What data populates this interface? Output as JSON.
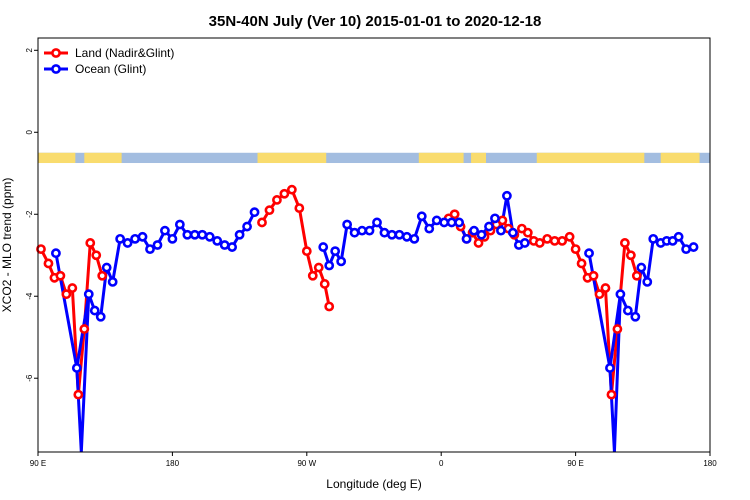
{
  "chart_data": {
    "type": "line",
    "title": "35N-40N July (Ver 10)   2015-01-01 to 2020-12-18",
    "xlabel": "Longitude (deg E)",
    "ylabel": "XCO2 - MLO trend (ppm)",
    "xlim": [
      90,
      540
    ],
    "ylim": [
      -7.8,
      2.3
    ],
    "x_ticks": [
      {
        "value": 90,
        "label": "90 E"
      },
      {
        "value": 180,
        "label": "180"
      },
      {
        "value": 270,
        "label": "90 W"
      },
      {
        "value": 360,
        "label": "0"
      },
      {
        "value": 450,
        "label": "90 E"
      },
      {
        "value": 540,
        "label": "180"
      }
    ],
    "y_ticks": [
      2,
      0,
      -2,
      -4,
      -6
    ],
    "grid": false,
    "legend_position": "top-left",
    "land_mask_band": {
      "y_range": [
        -0.75,
        -0.5
      ],
      "ocean_color": "#a3bde0",
      "land_color": "#f9dc6e",
      "land_segments": [
        [
          90,
          115
        ],
        [
          121,
          146
        ],
        [
          237,
          283
        ],
        [
          345,
          375
        ],
        [
          380,
          390
        ],
        [
          424,
          496
        ],
        [
          507,
          533
        ]
      ]
    },
    "series": [
      {
        "name": "Land (Nadir&Glint)",
        "color": "#ff0000",
        "segments": [
          [
            [
              92,
              -2.85
            ],
            [
              97,
              -3.2
            ],
            [
              101,
              -3.55
            ],
            [
              105,
              -3.5
            ],
            [
              109,
              -3.95
            ],
            [
              113,
              -3.8
            ],
            [
              117,
              -6.4
            ],
            [
              121,
              -4.8
            ],
            [
              125,
              -2.7
            ],
            [
              129,
              -3.0
            ],
            [
              133,
              -3.5
            ]
          ],
          [
            [
              240,
              -2.2
            ],
            [
              245,
              -1.9
            ],
            [
              250,
              -1.65
            ],
            [
              255,
              -1.5
            ],
            [
              260,
              -1.4
            ],
            [
              265,
              -1.85
            ],
            [
              270,
              -2.9
            ],
            [
              274,
              -3.5
            ],
            [
              278,
              -3.3
            ],
            [
              282,
              -3.7
            ],
            [
              285,
              -4.25
            ]
          ],
          [
            [
              365,
              -2.1
            ],
            [
              369,
              -2.0
            ],
            [
              373,
              -2.3
            ],
            [
              377,
              -2.6
            ],
            [
              381,
              -2.45
            ],
            [
              385,
              -2.7
            ],
            [
              389,
              -2.55
            ],
            [
              393,
              -2.4
            ],
            [
              397,
              -2.25
            ],
            [
              401,
              -2.15
            ],
            [
              405,
              -2.35
            ],
            [
              409,
              -2.5
            ]
          ],
          [
            [
              414,
              -2.35
            ],
            [
              418,
              -2.45
            ],
            [
              422,
              -2.65
            ],
            [
              426,
              -2.7
            ],
            [
              431,
              -2.6
            ],
            [
              436,
              -2.65
            ],
            [
              441,
              -2.65
            ],
            [
              446,
              -2.55
            ],
            [
              450,
              -2.85
            ],
            [
              454,
              -3.2
            ],
            [
              458,
              -3.55
            ],
            [
              462,
              -3.5
            ],
            [
              466,
              -3.95
            ],
            [
              470,
              -3.8
            ],
            [
              474,
              -6.4
            ],
            [
              478,
              -4.8
            ],
            [
              483,
              -2.7
            ],
            [
              487,
              -3.0
            ],
            [
              491,
              -3.5
            ]
          ]
        ]
      },
      {
        "name": "Ocean (Glint)",
        "color": "#0000ff",
        "segments": [
          [
            [
              102,
              -2.95
            ],
            [
              116,
              -5.75
            ],
            [
              124,
              -3.95
            ],
            [
              128,
              -4.35
            ],
            [
              132,
              -4.5
            ],
            [
              136,
              -3.3
            ],
            [
              140,
              -3.65
            ],
            [
              145,
              -2.6
            ],
            [
              150,
              -2.7
            ],
            [
              155,
              -2.6
            ],
            [
              160,
              -2.55
            ],
            [
              165,
              -2.85
            ],
            [
              170,
              -2.75
            ],
            [
              175,
              -2.4
            ],
            [
              180,
              -2.6
            ],
            [
              185,
              -2.25
            ],
            [
              190,
              -2.5
            ],
            [
              195,
              -2.5
            ],
            [
              200,
              -2.5
            ],
            [
              205,
              -2.55
            ],
            [
              210,
              -2.65
            ],
            [
              215,
              -2.75
            ],
            [
              220,
              -2.8
            ],
            [
              225,
              -2.5
            ],
            [
              230,
              -2.3
            ],
            [
              235,
              -1.95
            ]
          ],
          [
            [
              281,
              -2.8
            ],
            [
              285,
              -3.25
            ],
            [
              289,
              -2.9
            ],
            [
              293,
              -3.15
            ],
            [
              297,
              -2.25
            ],
            [
              302,
              -2.45
            ],
            [
              307,
              -2.4
            ],
            [
              312,
              -2.4
            ],
            [
              317,
              -2.2
            ],
            [
              322,
              -2.45
            ],
            [
              327,
              -2.5
            ],
            [
              332,
              -2.5
            ],
            [
              337,
              -2.55
            ],
            [
              342,
              -2.6
            ],
            [
              347,
              -2.05
            ],
            [
              352,
              -2.35
            ],
            [
              357,
              -2.15
            ],
            [
              362,
              -2.2
            ],
            [
              367,
              -2.2
            ],
            [
              372,
              -2.2
            ],
            [
              377,
              -2.6
            ],
            [
              382,
              -2.4
            ],
            [
              387,
              -2.5
            ],
            [
              392,
              -2.3
            ],
            [
              396,
              -2.1
            ],
            [
              400,
              -2.4
            ],
            [
              404,
              -1.55
            ],
            [
              408,
              -2.45
            ],
            [
              412,
              -2.75
            ],
            [
              416,
              -2.7
            ]
          ],
          [
            [
              459,
              -2.95
            ],
            [
              473,
              -5.75
            ],
            [
              480,
              -3.95
            ],
            [
              485,
              -4.35
            ],
            [
              490,
              -4.5
            ],
            [
              494,
              -3.3
            ],
            [
              498,
              -3.65
            ],
            [
              502,
              -2.6
            ],
            [
              507,
              -2.7
            ],
            [
              511,
              -2.65
            ],
            [
              515,
              -2.65
            ],
            [
              519,
              -2.55
            ],
            [
              524,
              -2.85
            ],
            [
              529,
              -2.8
            ]
          ]
        ],
        "dropouts": [
          [
            119,
            -7.8
          ],
          [
            476,
            -7.8
          ]
        ]
      }
    ]
  }
}
